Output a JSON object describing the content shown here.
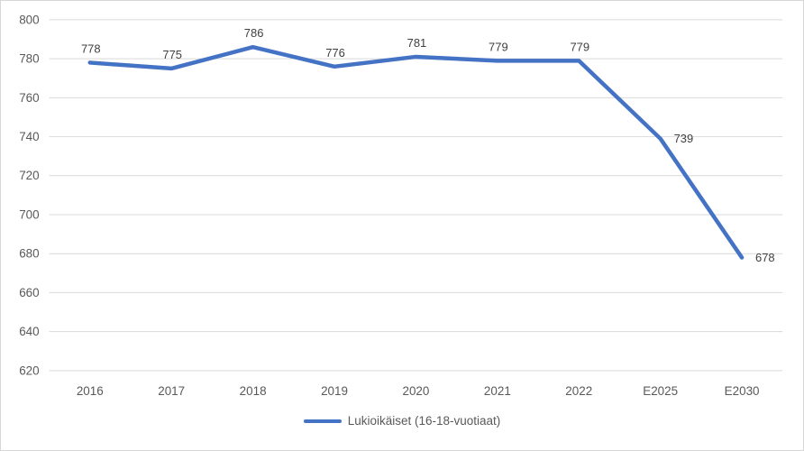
{
  "chart_data": {
    "type": "line",
    "categories": [
      "2016",
      "2017",
      "2018",
      "2019",
      "2020",
      "2021",
      "2022",
      "E2025",
      "E2030"
    ],
    "series": [
      {
        "name": "Lukioikäiset (16-18-vuotiaat)",
        "values": [
          778,
          775,
          786,
          776,
          781,
          779,
          779,
          739,
          678
        ]
      }
    ],
    "title": "",
    "xlabel": "",
    "ylabel": "",
    "ylim": [
      620,
      800
    ],
    "ytick_step": 20,
    "grid": true,
    "legend_position": "bottom",
    "line_color": "#4472C4",
    "gridline_color": "#d9d9d9",
    "tick_label_color": "#595959",
    "data_label_color": "#3f3f3f",
    "data_label_positions": [
      "above",
      "above",
      "above",
      "above",
      "above",
      "above",
      "above",
      "right",
      "right"
    ]
  },
  "legend": {
    "label": "Lukioikäiset (16-18-vuotiaat)"
  }
}
